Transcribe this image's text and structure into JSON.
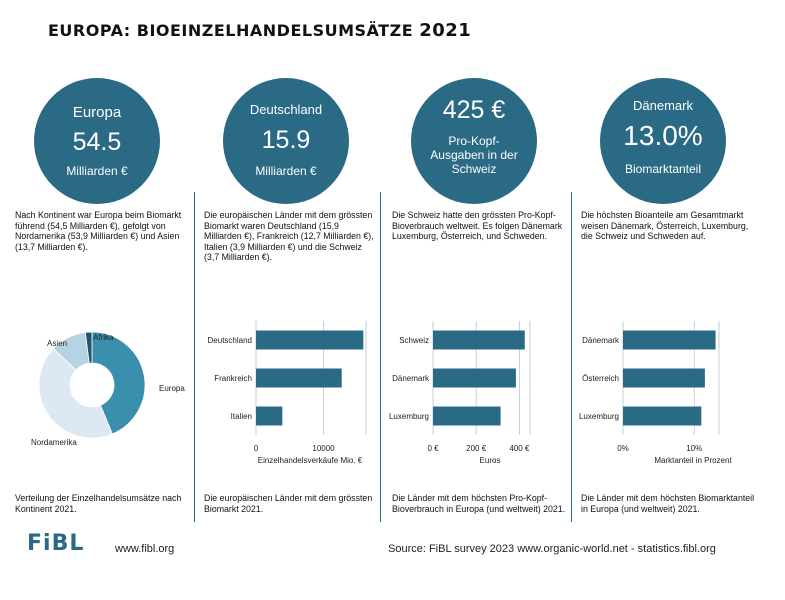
{
  "title": {
    "main": "EUROPA: BIOEINZELHANDELSUMSÄTZE",
    "year": "2021"
  },
  "panels": [
    {
      "circle": {
        "label": "Europa",
        "value": "54.5",
        "unit": "Milliarden €"
      },
      "description": "Nach Kontinent war Europa beim Biomarkt führend (54,5 Milliarden €), gefolgt von Nordamerika (53,9 Milliarden €) und Asien (13,7 Milliarden €).",
      "footnote": "Verteilung der Einzelhandelsumsätze nach Kontinent 2021."
    },
    {
      "circle": {
        "label": "Deutschland",
        "value": "15.9",
        "unit": "Milliarden €"
      },
      "description": "Die europäischen Länder mit dem grössten Biomarkt waren Deutschland (15,9 Milliarden €), Frankreich (12,7 Milliarden €), Italien (3,9 Milliarden €) und die Schweiz (3,7 Milliarden €).",
      "footnote": "Die europäischen  Länder mit dem grössten Biomarkt 2021."
    },
    {
      "circle": {
        "value": "425 €",
        "line1": "Pro-Kopf-",
        "line2": "Ausgaben in der",
        "line3": "Schweiz"
      },
      "description": "Die Schweiz hatte den grössten Pro-Kopf-Bioverbrauch weltweit. Es folgen Dänemark Luxemburg, Österreich, und Schweden.",
      "footnote": "Die Länder mit dem höchsten Pro-Kopf-Bioverbrauch in Europa (und weltweit) 2021."
    },
    {
      "circle": {
        "label": "Dänemark",
        "value": "13.0%",
        "unit": "Biomarktanteil"
      },
      "description": "Die höchsten Bioanteile am Gesamtmarkt weisen Dänemark, Österreich, Luxemburg, die Schweiz und Schweden auf.",
      "footnote": "Die Länder mit dem höchsten Biomarktanteil in Europa (und weltweit) 2021."
    }
  ],
  "chart_data": [
    {
      "type": "pie",
      "categories": [
        "Europa",
        "Nordamerika",
        "Asien",
        "Afrika"
      ],
      "values": [
        54.5,
        53.9,
        13.7,
        2.5
      ],
      "colors": [
        "#3a8fad",
        "#dce8f3",
        "#b5d3e3",
        "#1f5670"
      ],
      "donut": true
    },
    {
      "type": "bar",
      "orientation": "horizontal",
      "categories": [
        "Deutschland",
        "Frankreich",
        "Italien"
      ],
      "values": [
        15900,
        12700,
        3900
      ],
      "xlim": [
        0,
        16000
      ],
      "ticks": [
        0,
        10000
      ],
      "tick_labels": [
        "0",
        "10000"
      ],
      "xlabel": "Einzelhandelsverkäufe Mio. €",
      "grid": true,
      "color": "#2a6a85"
    },
    {
      "type": "bar",
      "orientation": "horizontal",
      "categories": [
        "Schweiz",
        "Dänemark",
        "Luxemburg"
      ],
      "values": [
        425,
        384,
        313
      ],
      "xlim": [
        0,
        440
      ],
      "ticks": [
        0,
        200,
        400
      ],
      "tick_labels": [
        "0 €",
        "200 €",
        "400 €"
      ],
      "xlabel": "Euros",
      "grid": true,
      "color": "#2a6a85"
    },
    {
      "type": "bar",
      "orientation": "horizontal",
      "categories": [
        "Dänemark",
        "Österreich",
        "Luxemburg"
      ],
      "values": [
        13.0,
        11.5,
        11.0
      ],
      "xlim": [
        0,
        13.2
      ],
      "ticks": [
        0,
        10
      ],
      "tick_labels": [
        "0%",
        "10%"
      ],
      "xlabel": "Marktanteil in Prozent",
      "grid": true,
      "color": "#2a6a85"
    }
  ],
  "footer": {
    "logo": "FiBL",
    "url": "www.fibl.org",
    "source": "Source: FiBL survey 2023 www.organic-world.net - statistics.fibl.org"
  }
}
